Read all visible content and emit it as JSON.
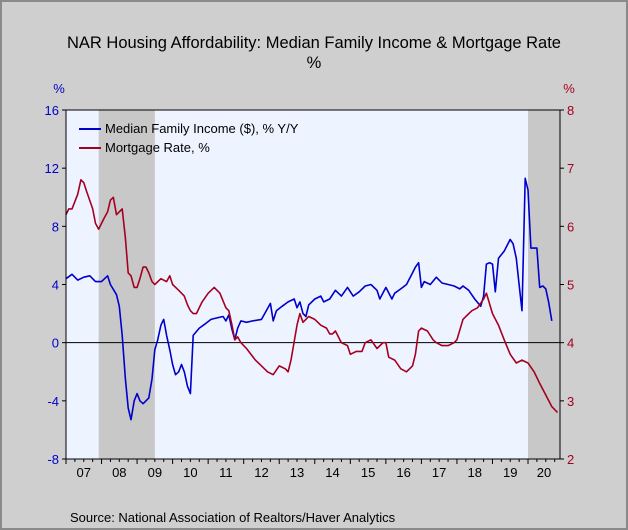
{
  "chart_data": {
    "type": "line",
    "title": "NAR Housing Affordability: Median Family Income & Mortgage Rate",
    "subtitle": "%",
    "left_unit": "%",
    "right_unit": "%",
    "x_range": [
      2007.0,
      2020.9
    ],
    "x_tick_labels": [
      "07",
      "08",
      "09",
      "10",
      "11",
      "12",
      "13",
      "14",
      "15",
      "16",
      "17",
      "18",
      "19",
      "20"
    ],
    "left_axis": {
      "range": [
        -8,
        16
      ],
      "ticks": [
        "-8",
        "-4",
        "0",
        "4",
        "8",
        "12",
        "16"
      ],
      "color": "#0000cc"
    },
    "right_axis": {
      "range": [
        2,
        8
      ],
      "ticks": [
        "2",
        "3",
        "4",
        "5",
        "6",
        "7",
        "8"
      ],
      "color": "#a50021"
    },
    "recessions": [
      [
        2007.92,
        2009.5
      ],
      [
        2020.0,
        2020.9
      ]
    ],
    "zero_line": 0,
    "legend": {
      "position": "top-left",
      "items": [
        "Median Family Income ($), % Y/Y",
        "Mortgage Rate, %"
      ]
    },
    "series": [
      {
        "name": "Median Family Income ($), % Y/Y",
        "axis": "left",
        "color": "#0000cc",
        "points": [
          [
            2007.0,
            4.4
          ],
          [
            2007.17,
            4.7
          ],
          [
            2007.33,
            4.3
          ],
          [
            2007.5,
            4.5
          ],
          [
            2007.67,
            4.6
          ],
          [
            2007.83,
            4.2
          ],
          [
            2008.0,
            4.2
          ],
          [
            2008.17,
            4.6
          ],
          [
            2008.25,
            4.0
          ],
          [
            2008.42,
            3.3
          ],
          [
            2008.5,
            2.5
          ],
          [
            2008.58,
            0.5
          ],
          [
            2008.67,
            -2.5
          ],
          [
            2008.75,
            -4.5
          ],
          [
            2008.83,
            -5.3
          ],
          [
            2008.92,
            -4.0
          ],
          [
            2009.0,
            -3.5
          ],
          [
            2009.08,
            -4.0
          ],
          [
            2009.17,
            -4.2
          ],
          [
            2009.25,
            -4.0
          ],
          [
            2009.33,
            -3.8
          ],
          [
            2009.42,
            -2.5
          ],
          [
            2009.5,
            -0.5
          ],
          [
            2009.58,
            0.2
          ],
          [
            2009.67,
            1.2
          ],
          [
            2009.75,
            1.6
          ],
          [
            2009.83,
            0.5
          ],
          [
            2009.92,
            -0.5
          ],
          [
            2010.0,
            -1.5
          ],
          [
            2010.08,
            -2.2
          ],
          [
            2010.17,
            -2.0
          ],
          [
            2010.25,
            -1.5
          ],
          [
            2010.33,
            -2.0
          ],
          [
            2010.42,
            -3.0
          ],
          [
            2010.5,
            -3.5
          ],
          [
            2010.58,
            0.5
          ],
          [
            2010.75,
            1.0
          ],
          [
            2010.92,
            1.3
          ],
          [
            2011.08,
            1.6
          ],
          [
            2011.25,
            1.7
          ],
          [
            2011.42,
            1.8
          ],
          [
            2011.5,
            1.5
          ],
          [
            2011.58,
            1.9
          ],
          [
            2011.67,
            0.9
          ],
          [
            2011.75,
            0.2
          ],
          [
            2011.83,
            1.0
          ],
          [
            2011.92,
            1.5
          ],
          [
            2012.08,
            1.4
          ],
          [
            2012.25,
            1.5
          ],
          [
            2012.5,
            1.6
          ],
          [
            2012.75,
            2.7
          ],
          [
            2012.83,
            1.5
          ],
          [
            2012.92,
            2.2
          ],
          [
            2013.08,
            2.5
          ],
          [
            2013.25,
            2.8
          ],
          [
            2013.42,
            3.0
          ],
          [
            2013.5,
            2.4
          ],
          [
            2013.58,
            2.8
          ],
          [
            2013.67,
            2.0
          ],
          [
            2013.75,
            1.8
          ],
          [
            2013.83,
            2.6
          ],
          [
            2014.0,
            3.0
          ],
          [
            2014.17,
            3.2
          ],
          [
            2014.25,
            2.8
          ],
          [
            2014.42,
            3.0
          ],
          [
            2014.58,
            3.6
          ],
          [
            2014.75,
            3.2
          ],
          [
            2014.92,
            3.8
          ],
          [
            2015.08,
            3.2
          ],
          [
            2015.25,
            3.5
          ],
          [
            2015.42,
            3.9
          ],
          [
            2015.58,
            4.0
          ],
          [
            2015.75,
            3.6
          ],
          [
            2015.83,
            3.0
          ],
          [
            2016.0,
            3.8
          ],
          [
            2016.17,
            3.0
          ],
          [
            2016.25,
            3.4
          ],
          [
            2016.42,
            3.7
          ],
          [
            2016.58,
            4.0
          ],
          [
            2016.75,
            4.8
          ],
          [
            2016.83,
            5.2
          ],
          [
            2016.92,
            5.5
          ],
          [
            2017.0,
            3.8
          ],
          [
            2017.08,
            4.2
          ],
          [
            2017.25,
            4.0
          ],
          [
            2017.42,
            4.5
          ],
          [
            2017.58,
            4.1
          ],
          [
            2017.75,
            4.0
          ],
          [
            2017.92,
            3.9
          ],
          [
            2018.08,
            3.7
          ],
          [
            2018.17,
            3.9
          ],
          [
            2018.33,
            3.6
          ],
          [
            2018.5,
            3.0
          ],
          [
            2018.67,
            2.5
          ],
          [
            2018.75,
            3.2
          ],
          [
            2018.83,
            5.4
          ],
          [
            2018.92,
            5.5
          ],
          [
            2019.0,
            5.4
          ],
          [
            2019.08,
            3.5
          ],
          [
            2019.17,
            5.8
          ],
          [
            2019.33,
            6.3
          ],
          [
            2019.5,
            7.1
          ],
          [
            2019.58,
            6.8
          ],
          [
            2019.67,
            5.8
          ],
          [
            2019.75,
            4.0
          ],
          [
            2019.83,
            2.2
          ],
          [
            2019.92,
            11.3
          ],
          [
            2020.0,
            10.5
          ],
          [
            2020.08,
            6.5
          ],
          [
            2020.25,
            6.5
          ],
          [
            2020.33,
            3.8
          ],
          [
            2020.42,
            3.9
          ],
          [
            2020.5,
            3.7
          ],
          [
            2020.58,
            2.8
          ],
          [
            2020.67,
            1.5
          ]
        ]
      },
      {
        "name": "Mortgage Rate, %",
        "axis": "right",
        "color": "#a50021",
        "points": [
          [
            2007.0,
            6.2
          ],
          [
            2007.08,
            6.3
          ],
          [
            2007.17,
            6.3
          ],
          [
            2007.33,
            6.55
          ],
          [
            2007.42,
            6.8
          ],
          [
            2007.5,
            6.75
          ],
          [
            2007.58,
            6.6
          ],
          [
            2007.75,
            6.3
          ],
          [
            2007.83,
            6.05
          ],
          [
            2007.92,
            5.95
          ],
          [
            2008.0,
            6.05
          ],
          [
            2008.08,
            6.15
          ],
          [
            2008.17,
            6.25
          ],
          [
            2008.25,
            6.45
          ],
          [
            2008.33,
            6.5
          ],
          [
            2008.42,
            6.2
          ],
          [
            2008.5,
            6.25
          ],
          [
            2008.58,
            6.3
          ],
          [
            2008.67,
            5.8
          ],
          [
            2008.75,
            5.2
          ],
          [
            2008.83,
            5.15
          ],
          [
            2008.92,
            4.95
          ],
          [
            2009.0,
            4.95
          ],
          [
            2009.08,
            5.1
          ],
          [
            2009.17,
            5.3
          ],
          [
            2009.25,
            5.3
          ],
          [
            2009.33,
            5.2
          ],
          [
            2009.42,
            5.05
          ],
          [
            2009.5,
            5.0
          ],
          [
            2009.67,
            5.1
          ],
          [
            2009.83,
            5.05
          ],
          [
            2009.92,
            5.15
          ],
          [
            2010.0,
            5.0
          ],
          [
            2010.17,
            4.9
          ],
          [
            2010.33,
            4.8
          ],
          [
            2010.42,
            4.65
          ],
          [
            2010.5,
            4.55
          ],
          [
            2010.58,
            4.5
          ],
          [
            2010.67,
            4.5
          ],
          [
            2010.83,
            4.7
          ],
          [
            2011.0,
            4.85
          ],
          [
            2011.17,
            4.95
          ],
          [
            2011.33,
            4.85
          ],
          [
            2011.5,
            4.6
          ],
          [
            2011.58,
            4.55
          ],
          [
            2011.67,
            4.3
          ],
          [
            2011.75,
            4.05
          ],
          [
            2011.83,
            4.1
          ],
          [
            2011.92,
            4.0
          ],
          [
            2012.08,
            3.9
          ],
          [
            2012.33,
            3.7
          ],
          [
            2012.5,
            3.6
          ],
          [
            2012.67,
            3.5
          ],
          [
            2012.83,
            3.45
          ],
          [
            2013.0,
            3.6
          ],
          [
            2013.17,
            3.55
          ],
          [
            2013.25,
            3.5
          ],
          [
            2013.33,
            3.7
          ],
          [
            2013.5,
            4.3
          ],
          [
            2013.58,
            4.5
          ],
          [
            2013.67,
            4.35
          ],
          [
            2013.83,
            4.45
          ],
          [
            2014.0,
            4.4
          ],
          [
            2014.17,
            4.3
          ],
          [
            2014.33,
            4.25
          ],
          [
            2014.42,
            4.15
          ],
          [
            2014.5,
            4.15
          ],
          [
            2014.58,
            4.2
          ],
          [
            2014.75,
            4.0
          ],
          [
            2014.92,
            3.95
          ],
          [
            2015.0,
            3.8
          ],
          [
            2015.17,
            3.85
          ],
          [
            2015.33,
            3.85
          ],
          [
            2015.42,
            4.0
          ],
          [
            2015.58,
            4.05
          ],
          [
            2015.75,
            3.9
          ],
          [
            2015.92,
            4.0
          ],
          [
            2016.0,
            4.0
          ],
          [
            2016.08,
            3.75
          ],
          [
            2016.25,
            3.7
          ],
          [
            2016.42,
            3.55
          ],
          [
            2016.58,
            3.5
          ],
          [
            2016.75,
            3.6
          ],
          [
            2016.83,
            3.8
          ],
          [
            2016.92,
            4.2
          ],
          [
            2017.0,
            4.25
          ],
          [
            2017.17,
            4.2
          ],
          [
            2017.33,
            4.05
          ],
          [
            2017.42,
            4.0
          ],
          [
            2017.58,
            3.95
          ],
          [
            2017.75,
            3.95
          ],
          [
            2017.92,
            4.0
          ],
          [
            2018.0,
            4.05
          ],
          [
            2018.17,
            4.4
          ],
          [
            2018.25,
            4.45
          ],
          [
            2018.42,
            4.55
          ],
          [
            2018.58,
            4.6
          ],
          [
            2018.75,
            4.75
          ],
          [
            2018.83,
            4.85
          ],
          [
            2019.0,
            4.5
          ],
          [
            2019.17,
            4.3
          ],
          [
            2019.33,
            4.05
          ],
          [
            2019.5,
            3.8
          ],
          [
            2019.67,
            3.65
          ],
          [
            2019.83,
            3.7
          ],
          [
            2020.0,
            3.65
          ],
          [
            2020.17,
            3.5
          ],
          [
            2020.33,
            3.3
          ],
          [
            2020.5,
            3.1
          ],
          [
            2020.67,
            2.9
          ],
          [
            2020.83,
            2.8
          ]
        ]
      }
    ]
  },
  "source": "Source:  National Association of Realtors/Haver Analytics"
}
